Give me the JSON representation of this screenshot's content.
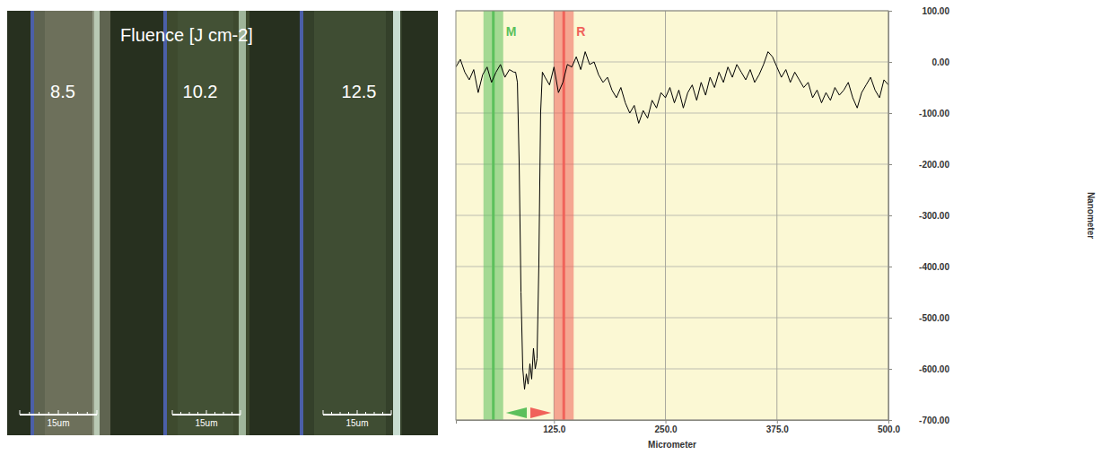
{
  "micrograph": {
    "title": "Fluence [J cm-2]",
    "labels": [
      "8.5",
      "10.2",
      "12.5"
    ],
    "scale_bars": [
      "15um",
      "15um",
      "15um"
    ]
  },
  "chart_data": {
    "type": "line",
    "xlabel": "Micrometer",
    "ylabel": "Nanometer",
    "color": "#000000",
    "grid": true,
    "x": [
      15,
      20,
      25,
      30,
      35,
      40,
      45,
      50,
      55,
      60,
      65,
      70,
      75,
      80,
      82,
      84,
      86,
      88,
      90,
      92,
      94,
      96,
      98,
      100,
      102,
      104,
      106,
      108,
      110,
      112,
      115,
      120,
      125,
      130,
      135,
      140,
      145,
      150,
      155,
      160,
      165,
      170,
      175,
      180,
      185,
      190,
      195,
      200,
      205,
      210,
      215,
      220,
      225,
      230,
      235,
      240,
      245,
      250,
      255,
      260,
      265,
      270,
      275,
      280,
      285,
      290,
      295,
      300,
      305,
      310,
      315,
      320,
      325,
      330,
      335,
      340,
      345,
      350,
      355,
      360,
      365,
      370,
      375,
      380,
      385,
      390,
      395,
      400,
      405,
      410,
      415,
      420,
      425,
      430,
      435,
      440,
      445,
      450,
      455,
      460,
      465,
      470,
      475,
      480,
      485,
      490,
      495,
      500
    ],
    "values": [
      -10,
      5,
      -20,
      -35,
      -15,
      -60,
      -25,
      -10,
      -40,
      -20,
      -5,
      -30,
      -15,
      -20,
      -20,
      -40,
      -200,
      -450,
      -600,
      -640,
      -610,
      -630,
      -590,
      -620,
      -560,
      -600,
      -580,
      -400,
      -100,
      -20,
      -30,
      -45,
      -10,
      -60,
      -40,
      -5,
      -10,
      10,
      -15,
      20,
      -5,
      0,
      -25,
      -40,
      -30,
      -55,
      -70,
      -50,
      -80,
      -100,
      -85,
      -120,
      -95,
      -110,
      -75,
      -90,
      -60,
      -70,
      -50,
      -80,
      -55,
      -90,
      -60,
      -45,
      -75,
      -40,
      -65,
      -30,
      -50,
      -20,
      -40,
      -10,
      -30,
      -5,
      -20,
      -35,
      -15,
      -40,
      -25,
      -5,
      20,
      10,
      -10,
      -30,
      -15,
      -40,
      -20,
      -35,
      -50,
      -40,
      -70,
      -55,
      -80,
      -60,
      -75,
      -50,
      -65,
      -55,
      -40,
      -70,
      -90,
      -60,
      -45,
      -30,
      -55,
      -70,
      -35,
      -45
    ],
    "xlim": [
      15,
      500
    ],
    "xticks": [
      {
        "value": 125,
        "label": "125.0"
      },
      {
        "value": 250,
        "label": "250.0"
      },
      {
        "value": 375,
        "label": "375.0"
      },
      {
        "value": 500,
        "label": "500.0"
      }
    ],
    "ylim": [
      -700,
      100
    ],
    "yticks": [
      {
        "value": 100,
        "label": "100.00"
      },
      {
        "value": 0,
        "label": "0.00"
      },
      {
        "value": -100,
        "label": "-100.00"
      },
      {
        "value": -200,
        "label": "-200.00"
      },
      {
        "value": -300,
        "label": "-300.00"
      },
      {
        "value": -400,
        "label": "-400.00"
      },
      {
        "value": -500,
        "label": "-500.00"
      },
      {
        "value": -600,
        "label": "-600.00"
      },
      {
        "value": -700,
        "label": "-700.00"
      }
    ],
    "annotations": [
      {
        "label": "M",
        "x": 57,
        "color": "#5cc05c"
      },
      {
        "label": "R",
        "x": 136,
        "color": "#f0625a"
      }
    ]
  }
}
